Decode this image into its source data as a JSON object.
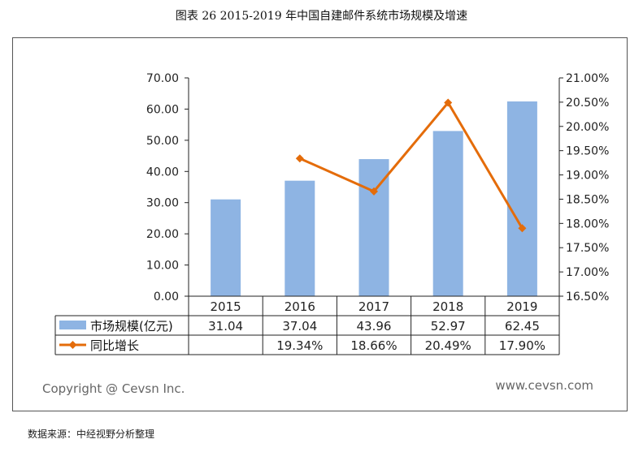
{
  "title": "图表 26  2015-2019 年中国自建邮件系统市场规模及增速",
  "copyright": "Copyright @ Cevsn Inc.",
  "website": "www.cevsn.com",
  "source": "数据来源：中经视野分析整理",
  "chart_data": {
    "type": "bar",
    "categories": [
      "2015",
      "2016",
      "2017",
      "2018",
      "2019"
    ],
    "series": [
      {
        "name": "市场规模(亿元)",
        "type": "bar",
        "axis": "left",
        "color": "#8eb4e3",
        "values": [
          31.04,
          37.04,
          43.96,
          52.97,
          62.45
        ],
        "labels": [
          "31.04",
          "37.04",
          "43.96",
          "52.97",
          "62.45"
        ]
      },
      {
        "name": "同比增长",
        "type": "line",
        "axis": "right",
        "color": "#e46c0a",
        "values": [
          null,
          19.34,
          18.66,
          20.49,
          17.9
        ],
        "labels": [
          "",
          "19.34%",
          "18.66%",
          "20.49%",
          "17.90%"
        ]
      }
    ],
    "y_left": {
      "range": [
        0,
        70
      ],
      "ticks": [
        "0.00",
        "10.00",
        "20.00",
        "30.00",
        "40.00",
        "50.00",
        "60.00",
        "70.00"
      ]
    },
    "y_right": {
      "range": [
        16.5,
        21.0
      ],
      "ticks": [
        "16.50%",
        "17.00%",
        "17.50%",
        "18.00%",
        "18.50%",
        "19.00%",
        "19.50%",
        "20.00%",
        "20.50%",
        "21.00%"
      ]
    },
    "data_table": true,
    "grid": false
  }
}
